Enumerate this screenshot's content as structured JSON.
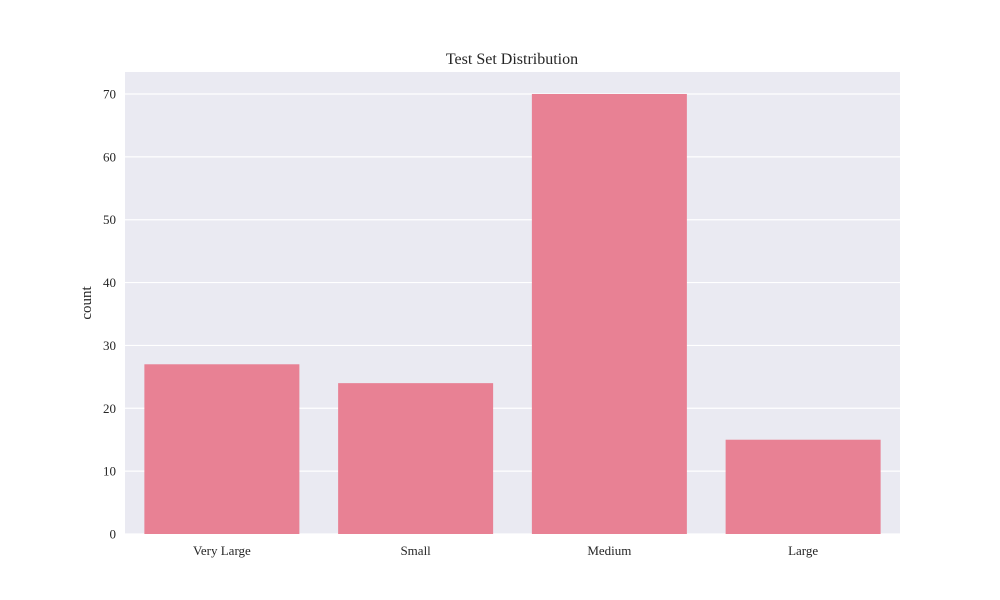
{
  "chart_data": {
    "type": "bar",
    "title": "Test Set Distribution",
    "xlabel": "",
    "ylabel": "count",
    "categories": [
      "Very Large",
      "Small",
      "Medium",
      "Large"
    ],
    "values": [
      27,
      24,
      70,
      15
    ],
    "yticks": [
      0,
      10,
      20,
      30,
      40,
      50,
      60,
      70
    ],
    "ylim": [
      0,
      73.5
    ],
    "grid": true,
    "legend": "none",
    "colors": {
      "bar": "#e88194",
      "plot_background": "#eaeaf2",
      "grid": "#ffffff"
    }
  }
}
